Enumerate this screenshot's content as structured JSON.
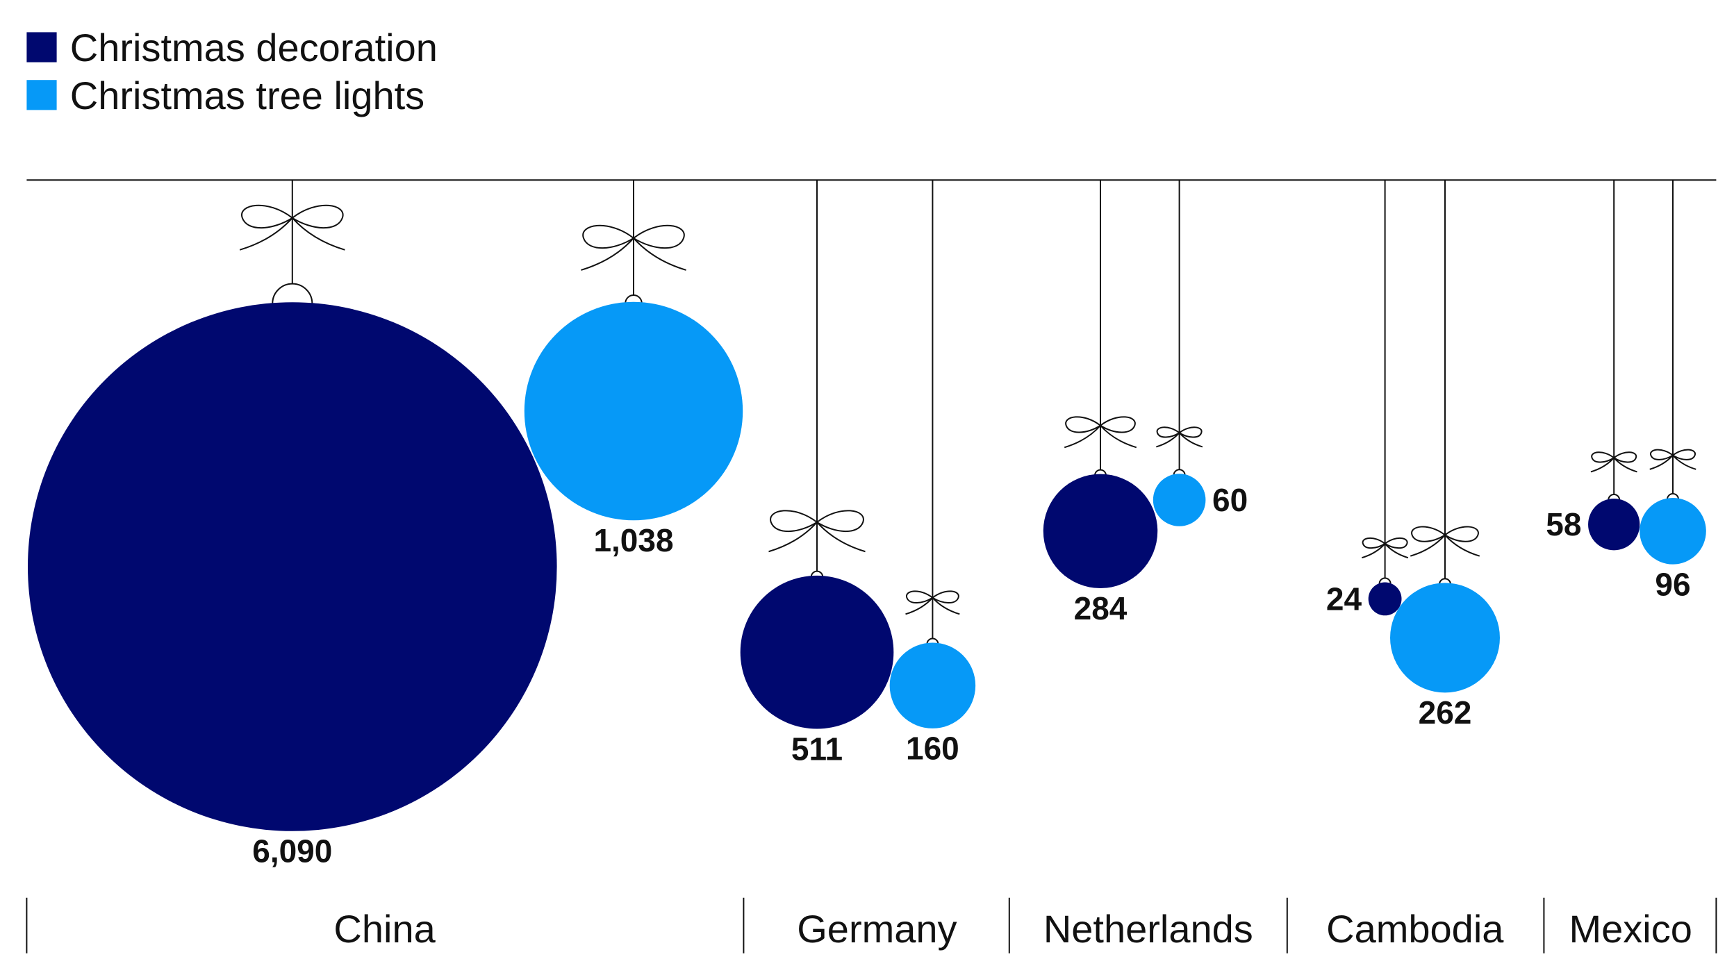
{
  "chart_data": {
    "type": "bubble",
    "title": "",
    "categories": [
      "China",
      "Germany",
      "Netherlands",
      "Cambodia",
      "Mexico"
    ],
    "series": [
      {
        "name": "Christmas decoration",
        "color": "#00086f",
        "values": [
          6090,
          511,
          284,
          24,
          58
        ],
        "labels": [
          "6,090",
          "511",
          "284",
          "24",
          "58"
        ]
      },
      {
        "name": "Christmas tree lights",
        "color": "#0699f7",
        "values": [
          1038,
          160,
          60,
          262,
          96
        ],
        "labels": [
          "1,038",
          "160",
          "60",
          "262",
          "96"
        ]
      }
    ],
    "legend_position": "top-left",
    "grid": false
  }
}
